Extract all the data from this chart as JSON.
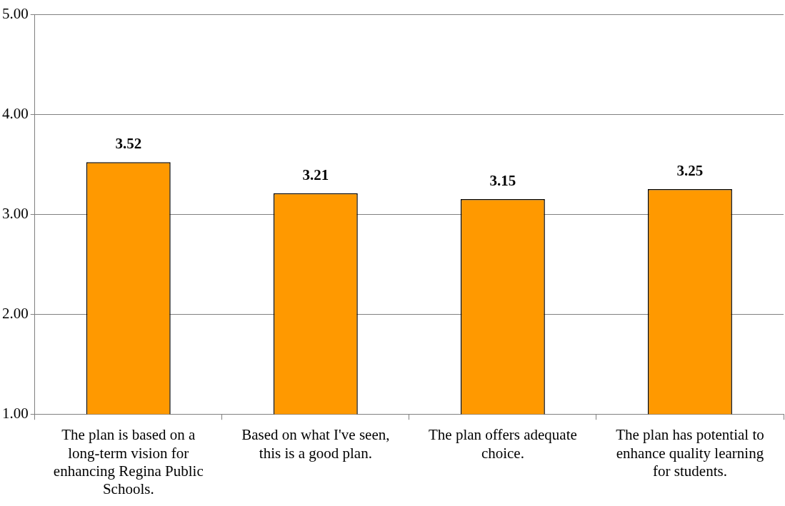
{
  "chart_data": {
    "type": "bar",
    "categories": [
      "The plan is based on a long-term vision for enhancing Regina Public Schools.",
      "Based on what I've seen, this is a good plan.",
      "The plan offers adequate choice.",
      "The plan has potential to enhance quality learning for students."
    ],
    "values": [
      3.52,
      3.21,
      3.15,
      3.25
    ],
    "color": "#ff9900",
    "ylim": [
      1,
      5
    ],
    "yticks": [
      {
        "value": 1,
        "label": "1.00"
      },
      {
        "value": 2,
        "label": "2.00"
      },
      {
        "value": 3,
        "label": "3.00"
      },
      {
        "value": 4,
        "label": "4.00"
      },
      {
        "value": 5,
        "label": "5.00"
      }
    ],
    "grid": "y",
    "legend": false,
    "data_labels": true
  }
}
